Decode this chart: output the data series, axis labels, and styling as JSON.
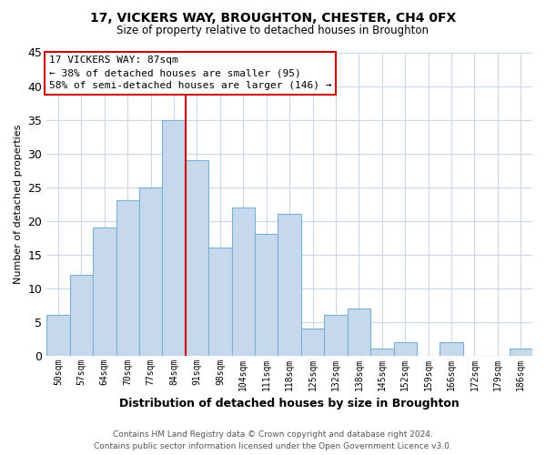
{
  "title": "17, VICKERS WAY, BROUGHTON, CHESTER, CH4 0FX",
  "subtitle": "Size of property relative to detached houses in Broughton",
  "xlabel": "Distribution of detached houses by size in Broughton",
  "ylabel": "Number of detached properties",
  "bar_labels": [
    "50sqm",
    "57sqm",
    "64sqm",
    "70sqm",
    "77sqm",
    "84sqm",
    "91sqm",
    "98sqm",
    "104sqm",
    "111sqm",
    "118sqm",
    "125sqm",
    "132sqm",
    "138sqm",
    "145sqm",
    "152sqm",
    "159sqm",
    "166sqm",
    "172sqm",
    "179sqm",
    "186sqm"
  ],
  "bar_values": [
    6,
    12,
    19,
    23,
    25,
    35,
    29,
    16,
    22,
    18,
    21,
    4,
    6,
    7,
    1,
    2,
    0,
    2,
    0,
    0,
    1
  ],
  "bar_color": "#c6d9ec",
  "bar_edge_color": "#7ab0d4",
  "vline_x": 5.5,
  "vline_color": "#cc0000",
  "ylim": [
    0,
    45
  ],
  "yticks": [
    0,
    5,
    10,
    15,
    20,
    25,
    30,
    35,
    40,
    45
  ],
  "annotation_title": "17 VICKERS WAY: 87sqm",
  "annotation_line1": "← 38% of detached houses are smaller (95)",
  "annotation_line2": "58% of semi-detached houses are larger (146) →",
  "annotation_box_edge": "#cc0000",
  "footer_line1": "Contains HM Land Registry data © Crown copyright and database right 2024.",
  "footer_line2": "Contains public sector information licensed under the Open Government Licence v3.0.",
  "bg_color": "#ffffff",
  "grid_color": "#c8d8e8"
}
